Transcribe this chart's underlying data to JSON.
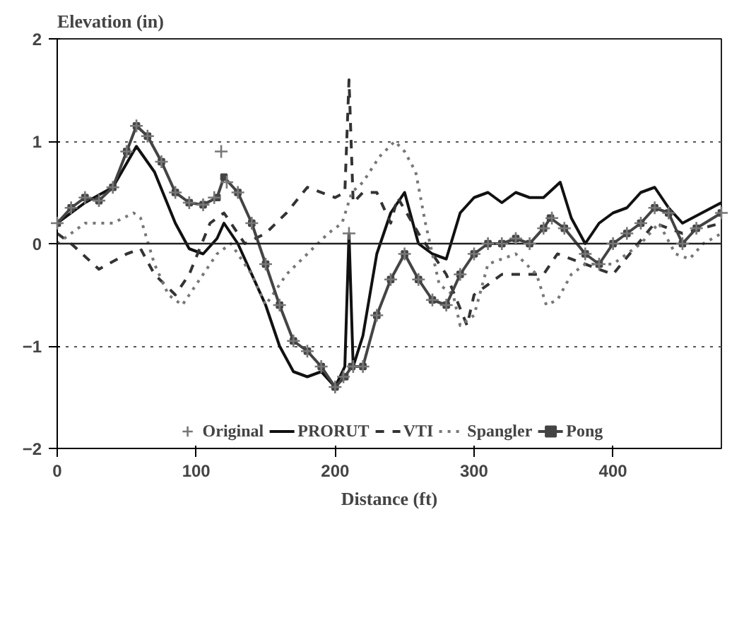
{
  "chart_data": {
    "type": "line",
    "ylabel": "Elevation (in)",
    "xlabel": "Distance (ft)",
    "xlim": [
      0,
      478
    ],
    "xticks": [
      0,
      100,
      200,
      300,
      400
    ],
    "ylim": [
      -2,
      2
    ],
    "yticks": [
      -2,
      -1,
      0,
      1,
      2
    ],
    "grid": "y",
    "legend": "bottom",
    "ref_lines": [
      {
        "axis": "y",
        "value": 0,
        "color": "#222222",
        "line_style": "solid"
      }
    ],
    "series": [
      {
        "name": "Original",
        "type": "scatter",
        "marker": "cross",
        "color": "#777777",
        "x": [
          0,
          10,
          20,
          30,
          40,
          50,
          57,
          65,
          75,
          85,
          95,
          105,
          113,
          118,
          122,
          130,
          140,
          150,
          160,
          170,
          180,
          190,
          200,
          206,
          210,
          213,
          220,
          230,
          240,
          250,
          260,
          270,
          280,
          290,
          300,
          310,
          320,
          330,
          340,
          350,
          356,
          365,
          380,
          390,
          400,
          410,
          420,
          430,
          440,
          450,
          460,
          478
        ],
        "values": [
          0.2,
          0.35,
          0.45,
          0.42,
          0.55,
          0.9,
          1.15,
          1.05,
          0.8,
          0.5,
          0.4,
          0.38,
          0.45,
          0.9,
          0.6,
          0.5,
          0.2,
          -0.2,
          -0.6,
          -0.95,
          -1.05,
          -1.2,
          -1.4,
          -1.3,
          0.1,
          -1.2,
          -1.2,
          -0.7,
          -0.35,
          -0.1,
          -0.35,
          -0.55,
          -0.6,
          -0.3,
          -0.1,
          0.0,
          0.0,
          0.05,
          0.0,
          0.15,
          0.25,
          0.15,
          -0.1,
          -0.2,
          0.0,
          0.1,
          0.2,
          0.35,
          0.3,
          0.0,
          0.15,
          0.3
        ]
      },
      {
        "name": "PRORUT",
        "line_style": "solid",
        "marker": "none",
        "color": "#111111",
        "x": [
          0,
          20,
          40,
          57,
          70,
          85,
          95,
          105,
          115,
          120,
          130,
          140,
          150,
          160,
          170,
          180,
          190,
          200,
          207,
          210,
          213,
          220,
          230,
          240,
          250,
          260,
          270,
          280,
          290,
          300,
          310,
          320,
          330,
          340,
          350,
          362,
          370,
          380,
          390,
          400,
          410,
          420,
          430,
          440,
          450,
          478
        ],
        "values": [
          0.2,
          0.4,
          0.55,
          0.95,
          0.7,
          0.2,
          -0.05,
          -0.1,
          0.05,
          0.2,
          0.0,
          -0.3,
          -0.6,
          -1.0,
          -1.25,
          -1.3,
          -1.25,
          -1.4,
          -1.2,
          0.1,
          -1.2,
          -0.9,
          -0.1,
          0.3,
          0.5,
          0.0,
          -0.1,
          -0.15,
          0.3,
          0.45,
          0.5,
          0.4,
          0.5,
          0.45,
          0.45,
          0.6,
          0.25,
          0.0,
          0.2,
          0.3,
          0.35,
          0.5,
          0.55,
          0.35,
          0.2,
          0.4
        ]
      },
      {
        "name": "VTI",
        "line_style": "dashed",
        "marker": "none",
        "color": "#333333",
        "x": [
          0,
          10,
          30,
          50,
          60,
          70,
          85,
          95,
          110,
          120,
          135,
          150,
          165,
          180,
          200,
          207,
          210,
          213,
          220,
          230,
          240,
          245,
          260,
          280,
          295,
          300,
          320,
          340,
          350,
          360,
          380,
          400,
          430,
          450,
          478
        ],
        "values": [
          0.1,
          0.0,
          -0.25,
          -0.1,
          -0.05,
          -0.3,
          -0.5,
          -0.3,
          0.2,
          0.3,
          0.0,
          0.1,
          0.3,
          0.55,
          0.45,
          0.5,
          1.6,
          0.4,
          0.5,
          0.5,
          0.2,
          0.45,
          0.1,
          -0.3,
          -0.8,
          -0.5,
          -0.3,
          -0.3,
          -0.3,
          -0.1,
          -0.2,
          -0.3,
          0.2,
          0.1,
          0.2
        ]
      },
      {
        "name": "Spangler",
        "line_style": "dotted",
        "marker": "none",
        "color": "#777777",
        "x": [
          0,
          20,
          40,
          55,
          60,
          70,
          80,
          90,
          100,
          115,
          125,
          140,
          150,
          165,
          180,
          195,
          205,
          212,
          220,
          232,
          243,
          250,
          258,
          265,
          275,
          285,
          290,
          300,
          310,
          330,
          345,
          352,
          360,
          370,
          380,
          400,
          420,
          433,
          445,
          455,
          465,
          478
        ],
        "values": [
          0.0,
          0.2,
          0.2,
          0.3,
          0.25,
          -0.2,
          -0.5,
          -0.6,
          -0.4,
          -0.1,
          0.0,
          -0.3,
          -0.6,
          -0.3,
          -0.1,
          0.1,
          0.2,
          0.5,
          0.6,
          0.85,
          1.0,
          0.9,
          0.7,
          0.2,
          -0.4,
          -0.5,
          -0.8,
          -0.7,
          -0.2,
          -0.1,
          -0.3,
          -0.6,
          -0.55,
          -0.3,
          -0.2,
          -0.2,
          0.0,
          0.2,
          -0.1,
          -0.15,
          0.0,
          0.1
        ]
      },
      {
        "name": "Pong",
        "line_style": "solid",
        "marker": "square",
        "color": "#444444",
        "x": [
          0,
          10,
          20,
          30,
          40,
          50,
          57,
          65,
          75,
          85,
          95,
          105,
          115,
          120,
          130,
          140,
          150,
          160,
          170,
          180,
          190,
          200,
          207,
          212,
          220,
          230,
          240,
          250,
          260,
          270,
          280,
          290,
          300,
          310,
          320,
          330,
          340,
          350,
          355,
          365,
          380,
          390,
          400,
          410,
          420,
          430,
          440,
          450,
          460,
          478
        ],
        "values": [
          0.2,
          0.35,
          0.45,
          0.42,
          0.55,
          0.9,
          1.15,
          1.05,
          0.8,
          0.5,
          0.4,
          0.38,
          0.45,
          0.65,
          0.5,
          0.2,
          -0.2,
          -0.6,
          -0.95,
          -1.05,
          -1.2,
          -1.4,
          -1.3,
          -1.2,
          -1.2,
          -0.7,
          -0.35,
          -0.1,
          -0.35,
          -0.55,
          -0.6,
          -0.3,
          -0.1,
          0.0,
          0.0,
          0.05,
          0.0,
          0.15,
          0.25,
          0.15,
          -0.1,
          -0.2,
          0.0,
          0.1,
          0.2,
          0.35,
          0.3,
          0.0,
          0.15,
          0.3
        ]
      }
    ]
  }
}
